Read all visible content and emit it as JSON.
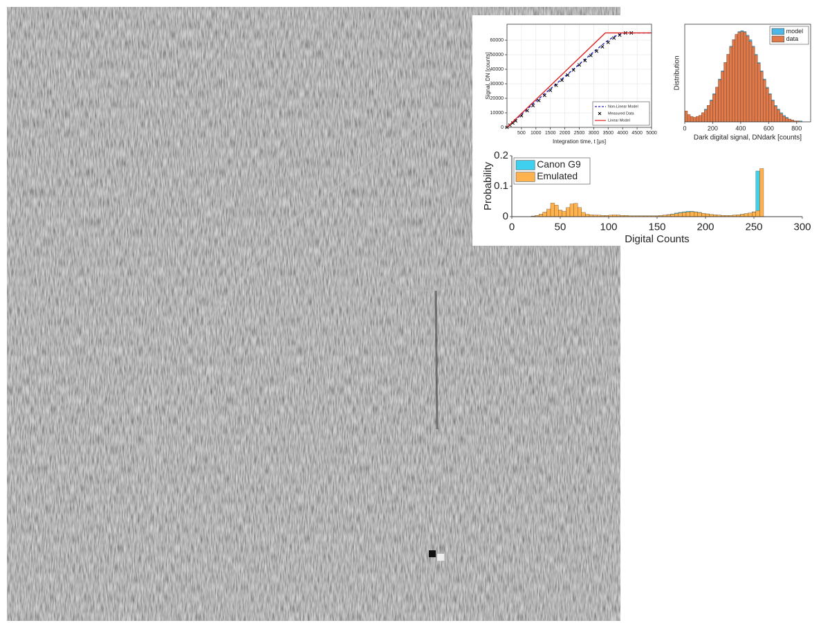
{
  "chart_data": [
    {
      "type": "line",
      "x_label": "Integration time, t [μs]",
      "y_label": "Signal, DN [counts]",
      "xlim": [
        0,
        5000
      ],
      "xticks": [
        500,
        1000,
        1500,
        2000,
        2500,
        3000,
        3500,
        4000,
        4500,
        5000
      ],
      "ylim": [
        0,
        71000
      ],
      "yticks": [
        0,
        10000,
        20000,
        30000,
        40000,
        50000,
        60000
      ],
      "grid": true,
      "legend": "lower right",
      "series": [
        {
          "name": "Non-Linear Model",
          "color": "#1f1fbf",
          "line_style": "dashed",
          "x": [
            0,
            500,
            1000,
            1500,
            2000,
            2500,
            3000,
            3400,
            3700,
            4000,
            4200,
            5000
          ],
          "values": [
            0,
            9000,
            18000,
            26500,
            35000,
            43500,
            52000,
            58500,
            62500,
            64800,
            65000,
            65000
          ]
        },
        {
          "name": "Measured Data",
          "color": "#000000",
          "line_style": "none",
          "marker": "x",
          "x": [
            0,
            100,
            200,
            300,
            500,
            700,
            900,
            1100,
            1300,
            1500,
            1700,
            1900,
            2100,
            2300,
            2500,
            2700,
            2900,
            3100,
            3300,
            3500,
            3700,
            3900,
            4100,
            4300
          ],
          "values": [
            0,
            1500,
            3000,
            4500,
            8000,
            11500,
            15000,
            18500,
            22000,
            25500,
            29000,
            32500,
            36000,
            39500,
            43000,
            46000,
            49500,
            52500,
            55500,
            58500,
            61500,
            63500,
            65000,
            65000
          ]
        },
        {
          "name": "Linear Model",
          "color": "#e02020",
          "line_style": "solid",
          "x": [
            0,
            3400,
            5000
          ],
          "values": [
            0,
            65000,
            65000
          ]
        }
      ]
    },
    {
      "type": "histogram",
      "x_label": "Dark digital signal, DNdark [counts]",
      "y_label": "Distribution",
      "xlim": [
        0,
        900
      ],
      "xticks": [
        0,
        200,
        400,
        600,
        800
      ],
      "ylim": [
        0,
        1.07
      ],
      "legend": "upper right",
      "bins": [
        0,
        20,
        40,
        60,
        80,
        100,
        120,
        140,
        160,
        180,
        200,
        220,
        240,
        260,
        280,
        300,
        320,
        340,
        360,
        380,
        400,
        420,
        440,
        460,
        480,
        500,
        520,
        540,
        560,
        580,
        600,
        620,
        640,
        660,
        680,
        700,
        720,
        740,
        760,
        780,
        800,
        820,
        840,
        860,
        880,
        900
      ],
      "series": [
        {
          "name": "model",
          "color": "#4db8e8",
          "values": [
            0.01,
            0.01,
            0.02,
            0.03,
            0.05,
            0.07,
            0.1,
            0.14,
            0.18,
            0.24,
            0.31,
            0.38,
            0.47,
            0.56,
            0.65,
            0.74,
            0.83,
            0.9,
            0.95,
            0.99,
            1.0,
            0.99,
            0.95,
            0.9,
            0.83,
            0.74,
            0.65,
            0.56,
            0.47,
            0.38,
            0.31,
            0.24,
            0.18,
            0.14,
            0.1,
            0.07,
            0.05,
            0.03,
            0.02,
            0.01,
            0.01,
            0.01,
            0.0,
            0.0,
            0.0
          ]
        },
        {
          "name": "data",
          "color": "#e07a4a",
          "values": [
            0.12,
            0.08,
            0.06,
            0.05,
            0.06,
            0.07,
            0.1,
            0.13,
            0.18,
            0.23,
            0.3,
            0.38,
            0.46,
            0.55,
            0.65,
            0.74,
            0.82,
            0.9,
            0.96,
            0.98,
            0.99,
            0.98,
            0.94,
            0.88,
            0.82,
            0.73,
            0.64,
            0.55,
            0.46,
            0.37,
            0.3,
            0.23,
            0.17,
            0.13,
            0.09,
            0.06,
            0.04,
            0.03,
            0.02,
            0.01,
            0.01,
            0.0,
            0.0,
            0.0,
            0.0
          ]
        }
      ]
    },
    {
      "type": "histogram",
      "x_label": "Digital Counts",
      "y_label": "Probability",
      "xlim": [
        0,
        300
      ],
      "xticks": [
        0,
        50,
        100,
        150,
        200,
        250,
        300
      ],
      "ylim": [
        0,
        0.2
      ],
      "yticks": [
        0,
        0.1,
        0.2
      ],
      "legend": "upper left",
      "bins": [
        0,
        4,
        8,
        12,
        16,
        20,
        24,
        28,
        32,
        36,
        40,
        44,
        48,
        52,
        56,
        60,
        64,
        68,
        72,
        76,
        80,
        84,
        88,
        92,
        96,
        100,
        104,
        108,
        112,
        116,
        120,
        124,
        128,
        132,
        136,
        140,
        144,
        148,
        152,
        156,
        160,
        164,
        168,
        172,
        176,
        180,
        184,
        188,
        192,
        196,
        200,
        204,
        208,
        212,
        216,
        220,
        224,
        228,
        232,
        236,
        240,
        244,
        248,
        252,
        256,
        260,
        264
      ],
      "series": [
        {
          "name": "Canon G9",
          "color": "#3fd0f0",
          "values": [
            0,
            0,
            0,
            0,
            0,
            0.002,
            0.004,
            0.008,
            0.013,
            0.02,
            0.035,
            0.032,
            0.02,
            0.016,
            0.025,
            0.032,
            0.034,
            0.025,
            0.012,
            0.007,
            0.005,
            0.005,
            0.004,
            0.004,
            0.004,
            0.004,
            0.005,
            0.005,
            0.004,
            0.004,
            0.003,
            0.003,
            0.003,
            0.003,
            0.003,
            0.003,
            0.003,
            0.003,
            0.004,
            0.005,
            0.007,
            0.009,
            0.012,
            0.014,
            0.016,
            0.018,
            0.018,
            0.016,
            0.014,
            0.011,
            0.009,
            0.007,
            0.006,
            0.005,
            0.004,
            0.004,
            0.004,
            0.005,
            0.006,
            0.008,
            0.01,
            0.012,
            0.016,
            0.15,
            0,
            0
          ]
        },
        {
          "name": "Emulated",
          "color": "#ffb24d",
          "values": [
            0,
            0,
            0,
            0,
            0,
            0.002,
            0.004,
            0.008,
            0.015,
            0.025,
            0.045,
            0.038,
            0.022,
            0.018,
            0.03,
            0.042,
            0.044,
            0.03,
            0.014,
            0.008,
            0.006,
            0.005,
            0.005,
            0.004,
            0.004,
            0.005,
            0.006,
            0.005,
            0.004,
            0.004,
            0.003,
            0.003,
            0.003,
            0.003,
            0.003,
            0.003,
            0.003,
            0.003,
            0.004,
            0.005,
            0.006,
            0.008,
            0.01,
            0.012,
            0.014,
            0.015,
            0.016,
            0.015,
            0.013,
            0.011,
            0.009,
            0.007,
            0.006,
            0.005,
            0.004,
            0.004,
            0.004,
            0.005,
            0.006,
            0.008,
            0.01,
            0.012,
            0.015,
            0.02,
            0.158,
            0
          ]
        }
      ]
    }
  ]
}
